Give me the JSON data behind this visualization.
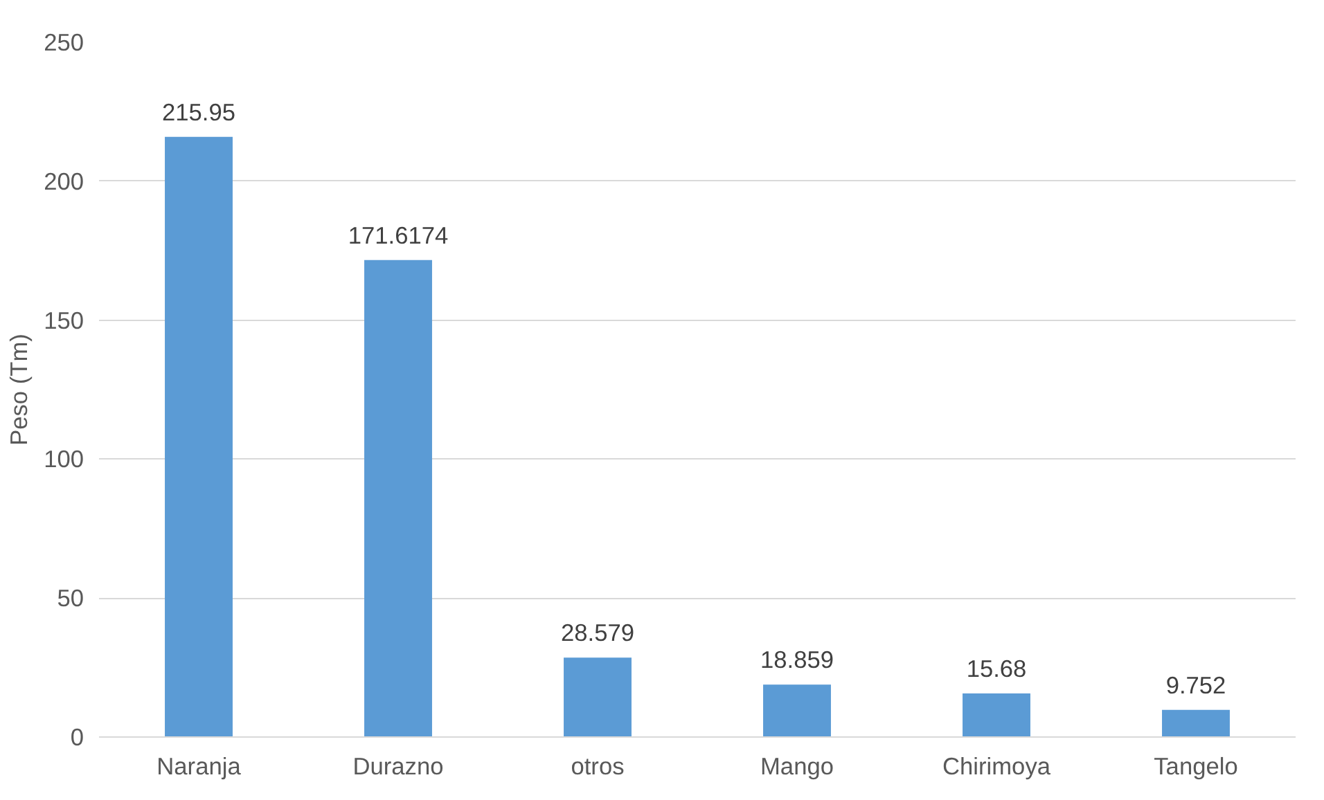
{
  "chart_data": {
    "type": "bar",
    "ylabel": "Peso (Tm)",
    "categories": [
      "Naranja",
      "Durazno",
      "otros",
      "Mango",
      "Chirimoya",
      "Tangelo"
    ],
    "values": [
      215.95,
      171.6174,
      28.579,
      18.859,
      15.68,
      9.752
    ],
    "color": "#5b9bd5",
    "ylim": [
      0,
      250
    ],
    "yticks": [
      0,
      50,
      100,
      150,
      200,
      250
    ],
    "grid": "y",
    "data_labels": true
  }
}
